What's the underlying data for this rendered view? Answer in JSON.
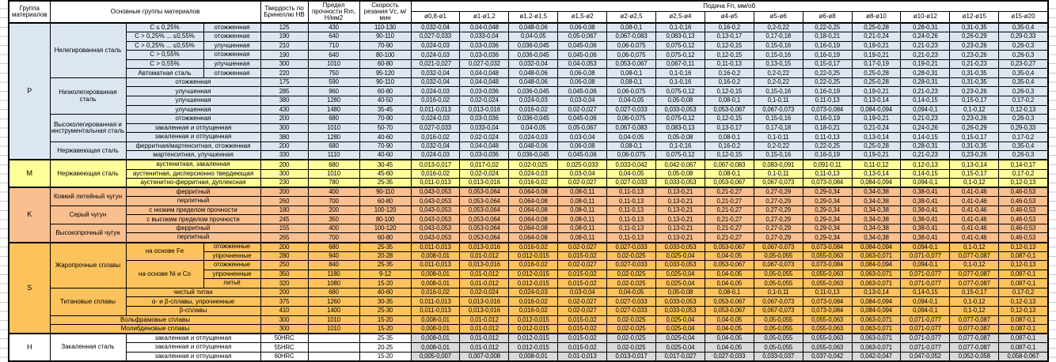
{
  "table": {
    "headers": {
      "group": "Группа материалов",
      "materials": "Основные группы материалов",
      "hardness": "Твердость по Бринеллю HB",
      "strength": "Предел прочности Rm, Н/мм2",
      "speed": "Скорость резания Vc, м/мин",
      "feed": "Подача Fn, мм/об"
    },
    "feed_columns": [
      "ø0,8-ø1",
      "ø1-ø1,2",
      "ø1,2-ø1,5",
      "ø1,5-ø2",
      "ø2-ø2,5",
      "ø2,5-ø4",
      "ø4-ø5",
      "ø5-ø6",
      "ø6-ø8",
      "ø8-ø10",
      "ø10-ø12",
      "ø12-ø15",
      "ø15-ø20"
    ],
    "feed_profiles": {
      "A": [
        "0,032-0,04",
        "0,04-0,048",
        "0,048-0,06",
        "0,06-0,08",
        "0,08-0,1",
        "0,1-0,16",
        "0,16-0,2",
        "0,2-0,22",
        "0,22-0,25",
        "0,25-0,28",
        "0,28-0,31",
        "0,31-0,35",
        "0,35-0,4"
      ],
      "B": [
        "0,027-0,033",
        "0,033-0,04",
        "0,04-0,05",
        "0,05-0,067",
        "0,067-0,083",
        "0,083-0,13",
        "0,13-0,17",
        "0,17-0,18",
        "0,18-0,21",
        "0,21-0,24",
        "0,24-0,26",
        "0,26-0,29",
        "0,29-0,33"
      ],
      "C": [
        "0,024-0,03",
        "0,03-0,036",
        "0,036-0,045",
        "0,045-0,06",
        "0,06-0,075",
        "0,075-0,12",
        "0,12-0,15",
        "0,15-0,16",
        "0,16-0,19",
        "0,19-0,21",
        "0,21-0,23",
        "0,23-0,26",
        "0,26-0,3"
      ],
      "D": [
        "0,021-0,027",
        "0,027-0,032",
        "0,032-0,04",
        "0,04-0,053",
        "0,053-0,067",
        "0,067-0,11",
        "0,11-0,13",
        "0,13-0,15",
        "0,15-0,17",
        "0,17-0,19",
        "0,19-0,21",
        "0,21-0,23",
        "0,23-0,27"
      ],
      "E": [
        "0,016-0,02",
        "0,02-0,024",
        "0,024-0,03",
        "0,03-0,04",
        "0,04-0,05",
        "0,05-0,08",
        "0,08-0,1",
        "0,1-0,11",
        "0,11-0,13",
        "0,13-0,14",
        "0,14-0,15",
        "0,15-0,17",
        "0,17-0,2"
      ],
      "F": [
        "0,011-0,013",
        "0,013-0,016",
        "0,016-0,02",
        "0,02-0,027",
        "0,027-0,033",
        "0,033-0,053",
        "0,053-0,067",
        "0,067-0,073",
        "0,073-0,084",
        "0,084-0,094",
        "0,094-0,1",
        "0,1-0,12",
        "0,12-0,13"
      ],
      "G": [
        "0,013-0,017",
        "0,017-0,02",
        "0,02-0,025",
        "0,025-0,033",
        "0,033-0,042",
        "0,042-0,067",
        "0,067-0,083",
        "0,083-0,091",
        "0,091-0,11",
        "0,11-0,12",
        "0,12-0,13",
        "0,13-0,14",
        "0,14-0,17"
      ],
      "K1": [
        "0,043-0,053",
        "0,053-0,064",
        "0,064-0,08",
        "0,08-0,11",
        "0,11-0,13",
        "0,13-0,21",
        "0,21-0,27",
        "0,27-0,29",
        "0,29-0,34",
        "0,34-0,38",
        "0,38-0,41",
        "0,41-0,46",
        "0,46-0,53"
      ],
      "H1": [
        "0,008-0,01",
        "0,01-0,012",
        "0,012-0,015",
        "0,015-0,02",
        "0,02-0,025",
        "0,025-0,04",
        "0,04-0,05",
        "0,05-0,055",
        "0,055-0,063",
        "0,063-0,071",
        "0,071-0,077",
        "0,077-0,087",
        "0,087-0,1"
      ],
      "I1": [
        "0,005-0,007",
        "0,007-0,008",
        "0,008-0,01",
        "0,01-0,013",
        "0,013-0,017",
        "0,017-0,027",
        "0,027-0,033",
        "0,033-0,037",
        "0,037-0,042",
        "0,042-0,047",
        "0,047-0,052",
        "0,052-0,058",
        "0,058-0,067"
      ]
    },
    "groups": [
      {
        "label": "P",
        "color": "#dce6f1",
        "rows": [
          {
            "cells": [
              {
                "t": "Нелегированная сталь",
                "rs": 6
              },
              {
                "t": "C ≤ 0,25%"
              },
              {
                "t": "отожженная"
              }
            ],
            "hb": "125",
            "rm": "430",
            "vc": "110-130",
            "feeds": "A"
          },
          {
            "cells": [
              {
                "t": "C > 0,25% ... ≤0,55%"
              },
              {
                "t": "отожженная"
              }
            ],
            "hb": "190",
            "rm": "640",
            "vc": "90-110",
            "feeds": "B"
          },
          {
            "cells": [
              {
                "t": "C > 0,25% ... ≤0,55%"
              },
              {
                "t": "улучшенная"
              }
            ],
            "hb": "210",
            "rm": "710",
            "vc": "70-90",
            "feeds": "C"
          },
          {
            "cells": [
              {
                "t": "C > 0,55%"
              },
              {
                "t": "отожженная"
              }
            ],
            "hb": "190",
            "rm": "640",
            "vc": "80-100",
            "feeds": "C"
          },
          {
            "cells": [
              {
                "t": "C > 0,55%"
              },
              {
                "t": "улучшенная"
              }
            ],
            "hb": "300",
            "rm": "1010",
            "vc": "60-80",
            "feeds": "D"
          },
          {
            "cells": [
              {
                "t": "Автоматная сталь"
              },
              {
                "t": "отожженная"
              }
            ],
            "hb": "220",
            "rm": "750",
            "vc": "95-120",
            "feeds": "A"
          },
          {
            "sep": true,
            "cells": [
              {
                "t": "Низколегированная сталь",
                "rs": 4
              },
              {
                "t": "отожженная",
                "cs": 2
              }
            ],
            "hb": "175",
            "rm": "590",
            "vc": "90-110",
            "feeds": "A"
          },
          {
            "cells": [
              {
                "t": "улучшенная",
                "cs": 2
              }
            ],
            "hb": "285",
            "rm": "960",
            "vc": "60-80",
            "feeds": "C"
          },
          {
            "cells": [
              {
                "t": "улучшенная",
                "cs": 2
              }
            ],
            "hb": "380",
            "rm": "1280",
            "vc": "40-50",
            "feeds": "E"
          },
          {
            "cells": [
              {
                "t": "улучшенная",
                "cs": 2
              }
            ],
            "hb": "430",
            "rm": "1480",
            "vc": "35-45",
            "feeds": "F"
          },
          {
            "sep": true,
            "cells": [
              {
                "t": "Высоколегированная и инструментальная сталь",
                "rs": 3
              },
              {
                "t": "отожженная",
                "cs": 2
              }
            ],
            "hb": "200",
            "rm": "680",
            "vc": "70-90",
            "feeds": "C"
          },
          {
            "cells": [
              {
                "t": "закаленная и отпущенная",
                "cs": 2
              }
            ],
            "hb": "300",
            "rm": "1010",
            "vc": "50-70",
            "feeds": "B"
          },
          {
            "cells": [
              {
                "t": "закаленная и отпущенная",
                "cs": 2
              }
            ],
            "hb": "380",
            "rm": "1280",
            "vc": "40-60",
            "feeds": "E"
          },
          {
            "sep": true,
            "cells": [
              {
                "t": "Нержавеющая сталь",
                "rs": 2
              },
              {
                "t": "ферритная/мартенситная, отожженная",
                "cs": 2
              }
            ],
            "hb": "200",
            "rm": "680",
            "vc": "70-90",
            "feeds": "A"
          },
          {
            "cells": [
              {
                "t": "мартенситная, улучшенная",
                "cs": 2
              }
            ],
            "hb": "330",
            "rm": "1110",
            "vc": "40-60",
            "feeds": "C"
          }
        ]
      },
      {
        "label": "M",
        "color": "#ffff99",
        "rows": [
          {
            "cells": [
              {
                "t": "Нержавеющая сталь",
                "rs": 3
              },
              {
                "t": "аустенитная, закаленная",
                "cs": 2
              }
            ],
            "hb": "200",
            "rm": "680",
            "vc": "30-45",
            "feeds": "G"
          },
          {
            "cells": [
              {
                "t": "аустенитная, дисперсионно твердеющая",
                "cs": 2
              }
            ],
            "hb": "300",
            "rm": "1010",
            "vc": "45-60",
            "feeds": "E"
          },
          {
            "cells": [
              {
                "t": "аустенитно-ферритная, дуплексная",
                "cs": 2
              }
            ],
            "hb": "230",
            "rm": "780",
            "vc": "25-35",
            "feeds": "F"
          }
        ]
      },
      {
        "label": "K",
        "color": "#fabf8f",
        "rows": [
          {
            "cells": [
              {
                "t": "Ковкий литейный чугун",
                "rs": 2
              },
              {
                "t": "ферритный",
                "cs": 2
              }
            ],
            "hb": "200",
            "rm": "400",
            "vc": "90-110",
            "feeds": "K1"
          },
          {
            "cells": [
              {
                "t": "перлитный",
                "cs": 2
              }
            ],
            "hb": "260",
            "rm": "700",
            "vc": "60-80",
            "feeds": "K1"
          },
          {
            "sep": true,
            "cells": [
              {
                "t": "Серый чугун",
                "rs": 2
              },
              {
                "t": "с низким пределом прочности",
                "cs": 2
              }
            ],
            "hb": "180",
            "rm": "200",
            "vc": "100-120",
            "feeds": "K1"
          },
          {
            "cells": [
              {
                "t": "с высоким пределом прочности",
                "cs": 2
              }
            ],
            "hb": "245",
            "rm": "350",
            "vc": "80-100",
            "feeds": "K1"
          },
          {
            "sep": true,
            "cells": [
              {
                "t": "Высокопрочный чугун",
                "rs": 2
              },
              {
                "t": "ферритный",
                "cs": 2
              }
            ],
            "hb": "155",
            "rm": "400",
            "vc": "100-120",
            "feeds": "K1"
          },
          {
            "cells": [
              {
                "t": "перлитный",
                "cs": 2
              }
            ],
            "hb": "265",
            "rm": "700",
            "vc": "60-80",
            "feeds": "K1"
          }
        ]
      },
      {
        "label": "S",
        "color": "#fcc25b",
        "rows": [
          {
            "cells": [
              {
                "t": "Жаропрочные сплавы",
                "rs": 5
              },
              {
                "t": "на основе Fe",
                "rs": 2
              },
              {
                "t": "отожженные"
              }
            ],
            "hb": "200",
            "rm": "680",
            "vc": "25-35",
            "feeds": "F"
          },
          {
            "cells": [
              {
                "t": "упрочненные"
              }
            ],
            "hb": "280",
            "rm": "940",
            "vc": "20-28",
            "feeds": "H1"
          },
          {
            "cells": [
              {
                "t": "на основе Ni и Co",
                "rs": 3
              },
              {
                "t": "отожженные"
              }
            ],
            "hb": "250",
            "rm": "840",
            "vc": "25-35",
            "feeds": "F"
          },
          {
            "cells": [
              {
                "t": "упрочненные"
              }
            ],
            "hb": "350",
            "rm": "1180",
            "vc": "9-12",
            "feeds": "H1"
          },
          {
            "cells": [
              {
                "t": "литьё"
              }
            ],
            "hb": "320",
            "rm": "1080",
            "vc": "15-20",
            "feeds": "H1"
          },
          {
            "sep": true,
            "cells": [
              {
                "t": "Титановые сплавы",
                "rs": 3
              },
              {
                "t": "чистый титан",
                "cs": 2
              }
            ],
            "hb": "200",
            "rm": "680",
            "vc": "40-60",
            "feeds": "E"
          },
          {
            "cells": [
              {
                "t": "α- и β-сплавы, упрочненные",
                "cs": 2
              }
            ],
            "hb": "375",
            "rm": "1260",
            "vc": "30-35",
            "feeds": "F"
          },
          {
            "cells": [
              {
                "t": "β-сплавы",
                "cs": 2
              }
            ],
            "hb": "410",
            "rm": "1400",
            "vc": "25-30",
            "feeds": "F"
          },
          {
            "sep": true,
            "cells": [
              {
                "t": "Вольфрамовые сплавы",
                "cs": 3
              }
            ],
            "hb": "300",
            "rm": "1010",
            "vc": "15-20",
            "feeds": "H1"
          },
          {
            "sep": true,
            "cells": [
              {
                "t": "Молибденовые сплавы",
                "cs": 3
              }
            ],
            "hb": "300",
            "rm": "1010",
            "vc": "15-20",
            "feeds": "H1"
          }
        ]
      },
      {
        "label": "H",
        "color": "#ffffff",
        "feed_color": "#d9d9d9",
        "rows": [
          {
            "cells": [
              {
                "t": "Закаленная сталь",
                "rs": 3
              },
              {
                "t": "закаленная и отпущенная",
                "cs": 2
              }
            ],
            "hb": "50HRC",
            "rm": "",
            "vc": "25-35",
            "feeds": "H1"
          },
          {
            "cells": [
              {
                "t": "закаленная и отпущенная",
                "cs": 2
              }
            ],
            "hb": "55HRC",
            "rm": "",
            "vc": "20-25",
            "feeds": "H1"
          },
          {
            "cells": [
              {
                "t": "закаленная и отпущенная",
                "cs": 2
              }
            ],
            "hb": "60HRC",
            "rm": "",
            "vc": "15-20",
            "feeds": "I1"
          }
        ]
      }
    ]
  }
}
